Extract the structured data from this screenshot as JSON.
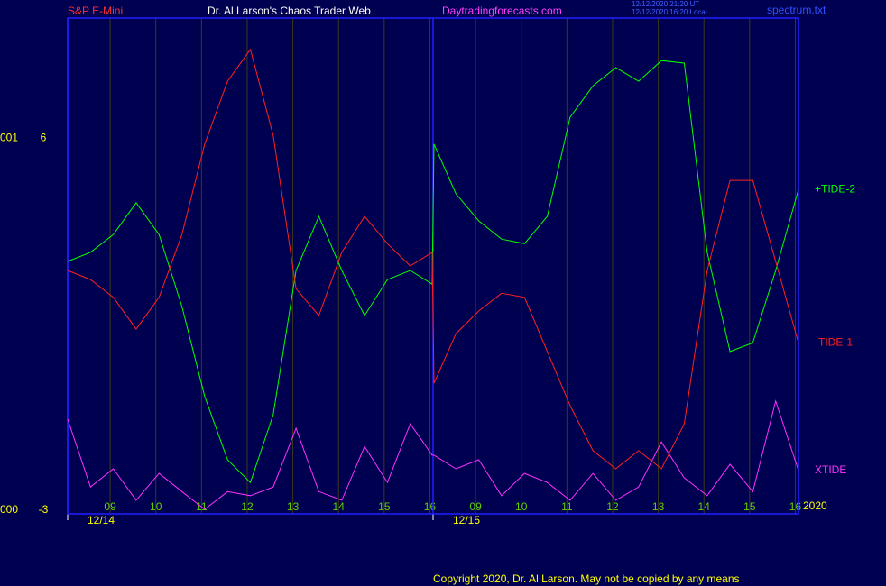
{
  "header": {
    "symbol": "S&P E-Mini",
    "site_title": "Dr. Al Larson's Chaos Trader Web",
    "url": "Daytradingforecasts.com",
    "timestamp_ut": "12/12/2020 21:20 UT",
    "timestamp_local": "12/12/2020 16:20 Local",
    "file": "spectrum.txt"
  },
  "footer": {
    "copyright": "Copyright 2020, Dr. Al Larson. May not be copied by any means",
    "year": "2020"
  },
  "chart_data": {
    "type": "line",
    "grid": true,
    "x": [
      0,
      0.5,
      1,
      1.5,
      2,
      2.5,
      3,
      3.5,
      4,
      4.5,
      5,
      5.5,
      6,
      6.5,
      7,
      7.5,
      7.98,
      8.02,
      8.5,
      9,
      9.5,
      10,
      10.5,
      11,
      11.5,
      12,
      12.5,
      13,
      13.5,
      14,
      14.5,
      15,
      15.5,
      16
    ],
    "xlim": [
      0,
      16
    ],
    "xticks": [
      {
        "value": 0.93,
        "label": "09"
      },
      {
        "value": 1.93,
        "label": "10"
      },
      {
        "value": 2.93,
        "label": "11"
      },
      {
        "value": 3.93,
        "label": "12"
      },
      {
        "value": 4.93,
        "label": "13"
      },
      {
        "value": 5.93,
        "label": "14"
      },
      {
        "value": 6.93,
        "label": "15"
      },
      {
        "value": 7.93,
        "label": "16"
      },
      {
        "value": 8.93,
        "label": "09"
      },
      {
        "value": 9.93,
        "label": "10"
      },
      {
        "value": 10.93,
        "label": "11"
      },
      {
        "value": 11.93,
        "label": "12"
      },
      {
        "value": 12.93,
        "label": "13"
      },
      {
        "value": 13.93,
        "label": "14"
      },
      {
        "value": 14.93,
        "label": "15"
      },
      {
        "value": 15.93,
        "label": "16"
      }
    ],
    "date_ticks": [
      {
        "value": 0,
        "label": "12/14"
      },
      {
        "value": 8,
        "label": "12/15"
      }
    ],
    "ylim": [
      -3,
      9
    ],
    "yticks": [
      6,
      -3
    ],
    "ytick_codes": [
      "001",
      "000"
    ],
    "series": [
      {
        "name": "+TIDE-2",
        "color": "#00ff00",
        "values": [
          3.11,
          3.33,
          3.76,
          4.53,
          3.76,
          2.02,
          -0.16,
          -1.69,
          -2.24,
          -0.6,
          2.89,
          4.2,
          2.89,
          1.8,
          2.67,
          2.89,
          2.56,
          5.95,
          4.75,
          4.09,
          3.65,
          3.54,
          4.2,
          6.6,
          7.36,
          7.8,
          7.47,
          7.97,
          7.91,
          3.33,
          0.93,
          1.14,
          2.89,
          4.85
        ]
      },
      {
        "name": "-TIDE-1",
        "color": "#ff2020",
        "values": [
          2.89,
          2.67,
          2.24,
          1.47,
          2.24,
          3.76,
          5.95,
          7.47,
          8.24,
          6.16,
          2.45,
          1.8,
          3.33,
          4.2,
          3.54,
          3.0,
          3.33,
          0.16,
          1.36,
          1.91,
          2.34,
          2.24,
          0.93,
          -0.38,
          -1.47,
          -1.91,
          -1.47,
          -1.91,
          -0.82,
          2.89,
          5.07,
          5.07,
          3.11,
          1.14
        ]
      },
      {
        "name": "XTIDE",
        "color": "#ff30ff",
        "values": [
          -0.71,
          -2.35,
          -1.91,
          -2.67,
          -2.02,
          -2.46,
          -2.89,
          -2.46,
          -2.56,
          -2.35,
          -0.93,
          -2.46,
          -2.67,
          -1.37,
          -2.24,
          -0.82,
          -1.58,
          -1.58,
          -1.91,
          -1.69,
          -2.56,
          -2.02,
          -2.24,
          -2.67,
          -2.02,
          -2.67,
          -2.35,
          -1.26,
          -2.13,
          -2.56,
          -1.8,
          -2.46,
          -0.27,
          -1.95
        ]
      }
    ]
  }
}
